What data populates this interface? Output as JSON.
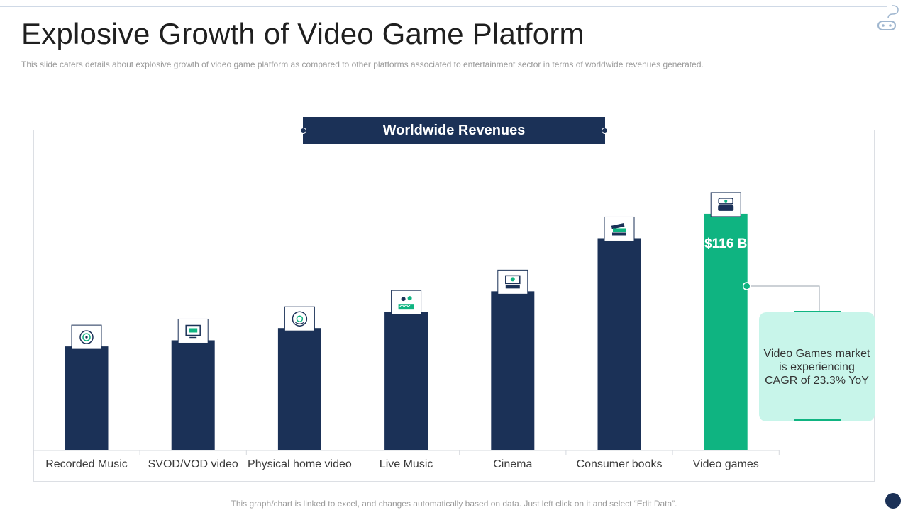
{
  "slide": {
    "title": "Explosive Growth of Video Game Platform",
    "subtitle": "This slide caters details about explosive growth of video game platform as compared to other platforms associated to entertainment sector in terms of worldwide revenues generated.",
    "footnote": "This graph/chart is linked to excel, and changes automatically based on data. Just left click on it and select “Edit Data”."
  },
  "chart_data": {
    "type": "bar",
    "title": "Worldwide Revenues",
    "xlabel": "",
    "ylabel": "",
    "categories": [
      "Recorded Music",
      "SVOD/VOD video",
      "Physical home video",
      "Live Music",
      "Cinema",
      "Consumer books",
      "Video games"
    ],
    "values": [
      51,
      54,
      60,
      68,
      78,
      104,
      116
    ],
    "ylim": [
      0,
      125
    ],
    "highlight_index": 6,
    "data_labels": [
      null,
      null,
      null,
      null,
      null,
      null,
      "$116 B"
    ],
    "bar_icons": [
      "vinyl-record-icon",
      "monitor-video-icon",
      "disc-player-icon",
      "concert-stage-icon",
      "cinema-screen-icon",
      "books-icon",
      "game-console-icon"
    ],
    "colors": {
      "bar": "#1b3157",
      "highlight": "#0fb481"
    },
    "grid": false,
    "legend": "none"
  },
  "callout": {
    "text": "Video Games market is experiencing CAGR of 23.3% YoY"
  },
  "colors": {
    "navy": "#1b3157",
    "green": "#0fb481",
    "mint": "#c8f5ea"
  }
}
